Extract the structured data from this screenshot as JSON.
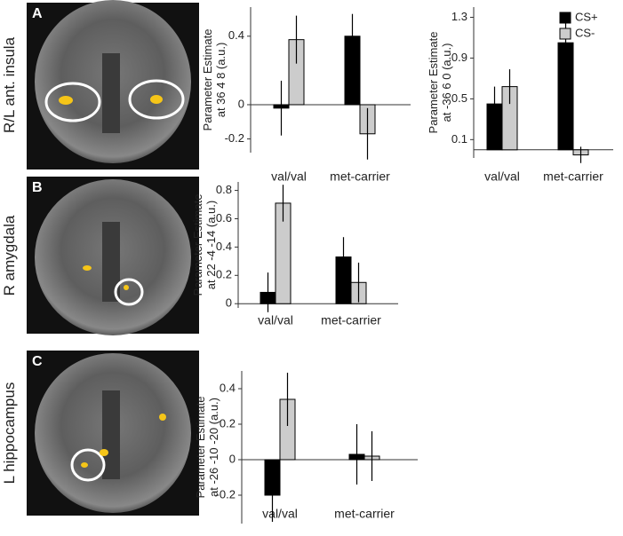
{
  "panels": [
    {
      "letter": "A",
      "region": "R/L ant. insula"
    },
    {
      "letter": "B",
      "region": "R amygdala"
    },
    {
      "letter": "C",
      "region": "L hippocampus"
    }
  ],
  "chart_data": [
    {
      "type": "bar",
      "ylabel": [
        "Parameter Estimate",
        "at 36 4 8 (a.u.)"
      ],
      "categories": [
        "val/val",
        "met-carrier"
      ],
      "ylim": [
        -0.28,
        0.57
      ],
      "yticks": [
        -0.2,
        0,
        0.4
      ],
      "series": [
        {
          "color": "#000000",
          "values": [
            -0.02,
            0.4
          ],
          "errors": [
            0.16,
            0.13
          ]
        },
        {
          "color": "#cccccc",
          "values": [
            0.38,
            -0.17
          ],
          "errors": [
            0.14,
            0.15
          ]
        }
      ]
    },
    {
      "type": "bar",
      "ylabel": [
        "Parameter Estimate",
        "at -36 6 0 (a.u.)"
      ],
      "categories": [
        "val/val",
        "met-carrier"
      ],
      "ylim": [
        -0.08,
        1.4
      ],
      "yticks": [
        0.1,
        0.5,
        0.9,
        1.3
      ],
      "legend": "upper right",
      "series": [
        {
          "name": "CS+",
          "color": "#000000",
          "values": [
            0.45,
            1.05
          ],
          "errors": [
            0.17,
            0.2
          ]
        },
        {
          "name": "CS-",
          "color": "#cccccc",
          "values": [
            0.62,
            -0.05
          ],
          "errors": [
            0.17,
            0.08
          ]
        }
      ]
    },
    {
      "type": "bar",
      "ylabel": [
        "Parameter Estimate",
        "at 22 -4 -14 (a.u.)"
      ],
      "categories": [
        "val/val",
        "met-carrier"
      ],
      "ylim": [
        -0.03,
        0.86
      ],
      "yticks": [
        0,
        0.2,
        0.4,
        0.6,
        0.8
      ],
      "series": [
        {
          "color": "#000000",
          "values": [
            0.08,
            0.33
          ],
          "errors": [
            0.14,
            0.14
          ]
        },
        {
          "color": "#cccccc",
          "values": [
            0.71,
            0.15
          ],
          "errors": [
            0.13,
            0.14
          ]
        }
      ]
    },
    {
      "type": "bar",
      "ylabel": [
        "Parameter Estimate",
        "at -26 -10 -20 (a.u.)"
      ],
      "categories": [
        "val/val",
        "met-carrier"
      ],
      "ylim": [
        -0.36,
        0.5
      ],
      "yticks": [
        -0.2,
        0,
        0.2,
        0.4
      ],
      "series": [
        {
          "color": "#000000",
          "values": [
            -0.2,
            0.03
          ],
          "errors": [
            0.15,
            0.17
          ]
        },
        {
          "color": "#cccccc",
          "values": [
            0.34,
            0.02
          ],
          "errors": [
            0.15,
            0.14
          ]
        }
      ]
    }
  ]
}
